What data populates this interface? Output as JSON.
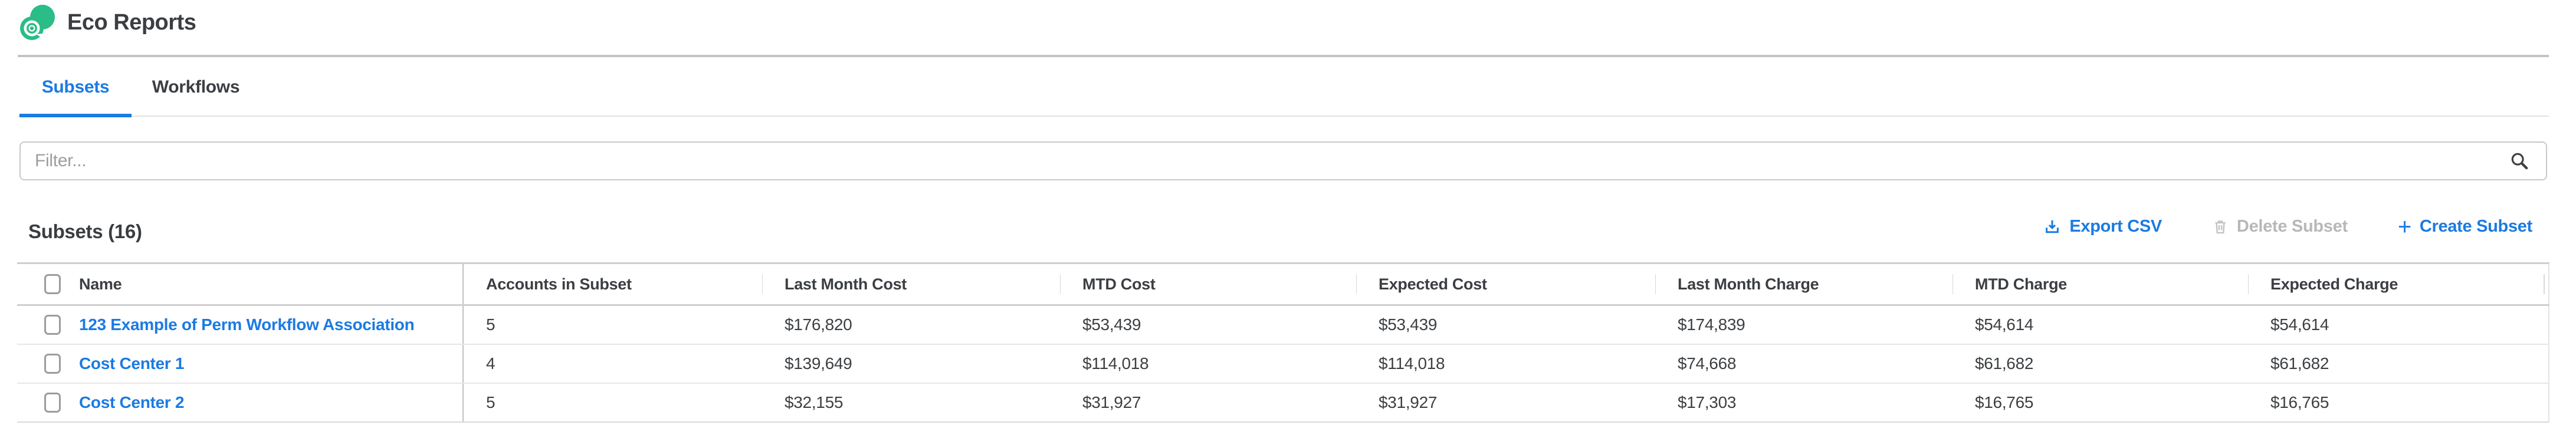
{
  "header": {
    "title": "Eco Reports"
  },
  "tabs": [
    {
      "label": "Subsets",
      "active": true
    },
    {
      "label": "Workflows",
      "active": false
    }
  ],
  "filter": {
    "placeholder": "Filter...",
    "value": ""
  },
  "section": {
    "title": "Subsets (16)",
    "actions": {
      "export_csv": "Export CSV",
      "delete_subset": "Delete Subset",
      "delete_disabled": true,
      "create_subset": "Create Subset"
    }
  },
  "table": {
    "columns": [
      "Name",
      "Accounts in Subset",
      "Last Month Cost",
      "MTD Cost",
      "Expected Cost",
      "Last Month Charge",
      "MTD Charge",
      "Expected Charge"
    ],
    "fields": [
      "name",
      "accounts",
      "last_month_cost",
      "mtd_cost",
      "expected_cost",
      "last_month_charge",
      "mtd_charge",
      "expected_charge"
    ],
    "rows": [
      {
        "name": "123 Example of Perm Workflow Association",
        "accounts": "5",
        "last_month_cost": "$176,820",
        "mtd_cost": "$53,439",
        "expected_cost": "$53,439",
        "last_month_charge": "$174,839",
        "mtd_charge": "$54,614",
        "expected_charge": "$54,614"
      },
      {
        "name": "Cost Center 1",
        "accounts": "4",
        "last_month_cost": "$139,649",
        "mtd_cost": "$114,018",
        "expected_cost": "$114,018",
        "last_month_charge": "$74,668",
        "mtd_charge": "$61,682",
        "expected_charge": "$61,682"
      },
      {
        "name": "Cost Center 2",
        "accounts": "5",
        "last_month_cost": "$32,155",
        "mtd_cost": "$31,927",
        "expected_cost": "$31,927",
        "last_month_charge": "$17,303",
        "mtd_charge": "$16,765",
        "expected_charge": "$16,765"
      }
    ]
  },
  "colors": {
    "accent_blue": "#1b7ae2",
    "brand_green": "#2abd87",
    "disabled_gray": "#b8b8b8",
    "text_dark": "#3b3e42"
  }
}
